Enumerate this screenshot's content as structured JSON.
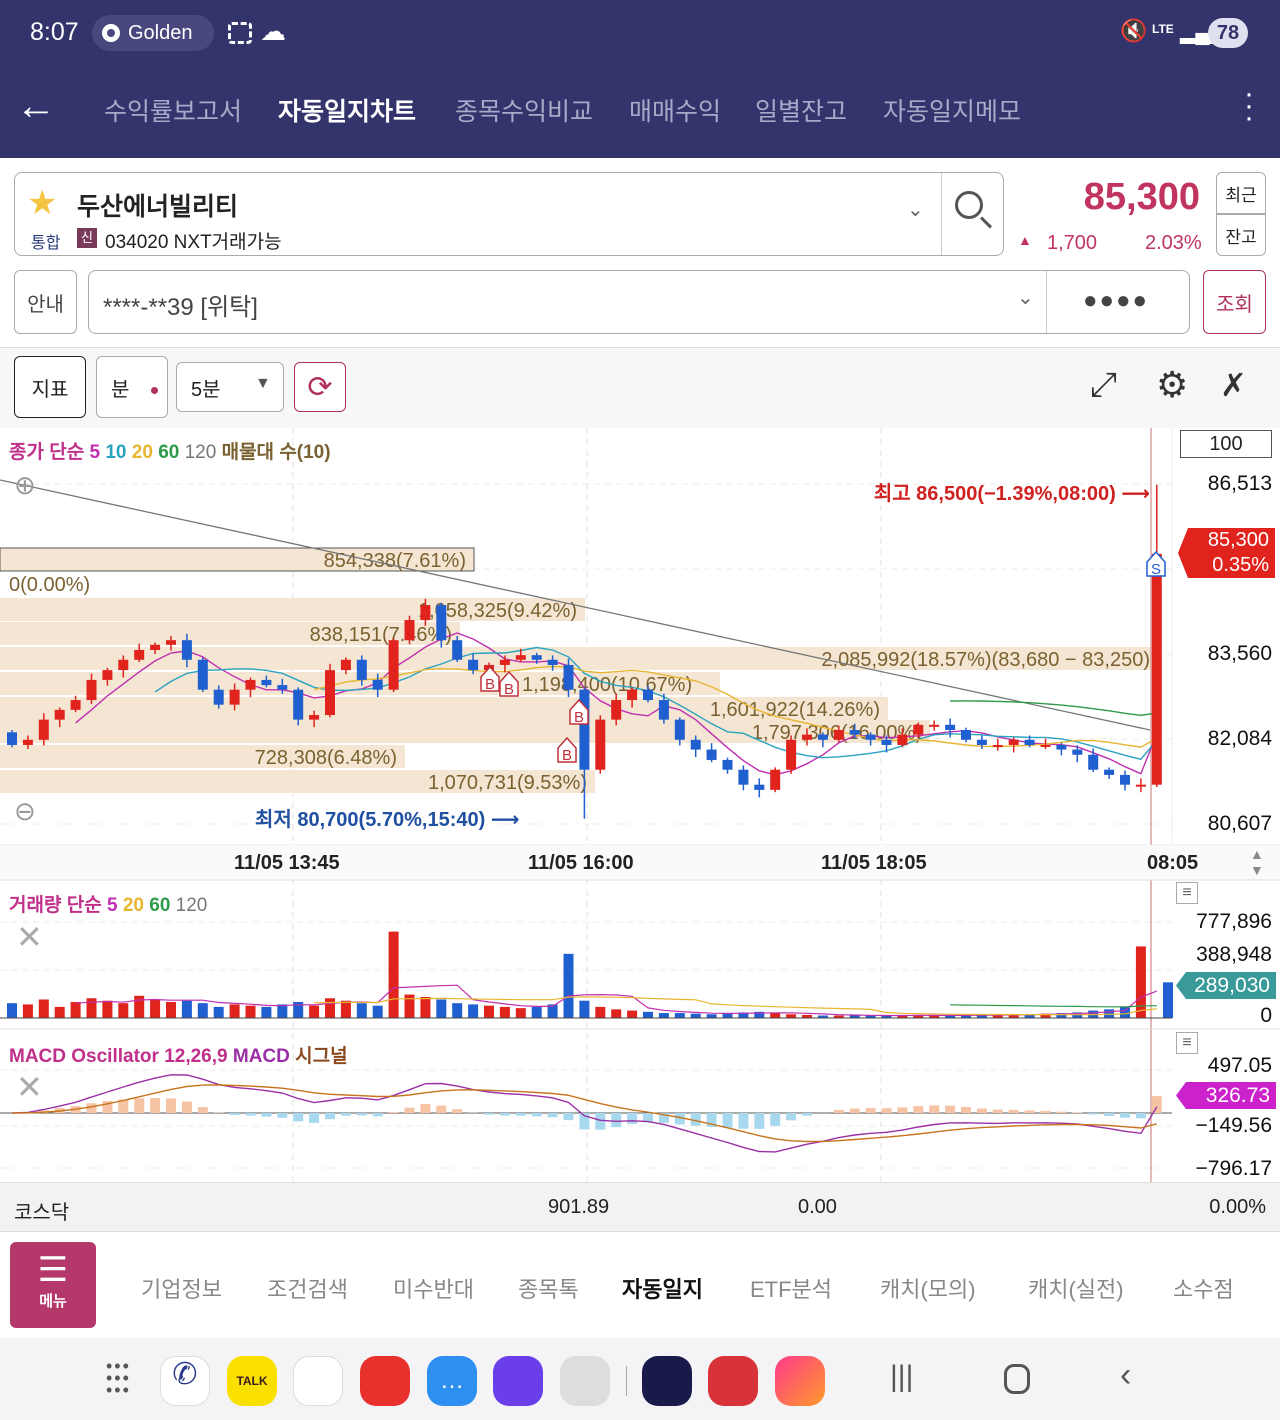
{
  "status_bar": {
    "time": "8:07",
    "pill_label": "Golden",
    "battery": "78",
    "network": "LTE"
  },
  "nav": {
    "tabs": [
      {
        "label": "수익률보고서",
        "active": false
      },
      {
        "label": "자동일지차트",
        "active": true
      },
      {
        "label": "종목수익비교",
        "active": false
      },
      {
        "label": "매매수익",
        "active": false
      },
      {
        "label": "일별잔고",
        "active": false
      },
      {
        "label": "자동일지메모",
        "active": false
      }
    ]
  },
  "stock": {
    "name": "두산에너빌리티",
    "market": "통합",
    "credit_badge": "신",
    "code_info": "034020 NXT거래가능",
    "price": "85,300",
    "change": "1,700",
    "change_pct": "2.03%",
    "recent_label": "최근",
    "balance_label": "잔고",
    "up_color": "#d0201f"
  },
  "account": {
    "info_label": "안내",
    "account_value": "****-**39 [위탁]",
    "password_mask": "●●●●",
    "query_label": "조회"
  },
  "toolbar": {
    "indicator_label": "지표",
    "period_label": "분",
    "interval_value": "5분"
  },
  "price_chart": {
    "legend": [
      {
        "text": "종가 단순",
        "color": "#c02f8a"
      },
      {
        "text": "5",
        "color": "#c02fb0"
      },
      {
        "text": "10",
        "color": "#2aa3c0"
      },
      {
        "text": "20",
        "color": "#e8b530"
      },
      {
        "text": "60",
        "color": "#2e9a4a"
      },
      {
        "text": "120",
        "color": "#777777"
      },
      {
        "text": "매물대 수(10)",
        "color": "#7a6130"
      }
    ],
    "count_box": "100",
    "y_ticks": [
      "86,513",
      "83,560",
      "82,084",
      "80,607"
    ],
    "current_price_tag": {
      "price": "85,300",
      "pct": "0.35%"
    },
    "high_label": "최고 86,500(−1.39%,08:00)",
    "low_label": "최저 80,700(5.70%,15:40)",
    "volume_profile": [
      "854,338(7.61%)",
      "0(0.00%)",
      "1,058,325(9.42%)",
      "838,151(7.46%)",
      "2,085,992(18.57%)(83,680 − 83,250)",
      "1,198,400(10.67%)",
      "1,601,922(14.26%)",
      "1,797,306(16.00%)",
      "728,308(6.48%)",
      "1,070,731(9.53%)"
    ],
    "markers": [
      "B",
      "B",
      "B",
      "B",
      "S"
    ],
    "x_ticks": [
      "11/05 13:45",
      "11/05 16:00",
      "11/05 18:05",
      "08:05"
    ],
    "closes": [
      81980,
      82070,
      82420,
      82590,
      82760,
      83110,
      83280,
      83460,
      83630,
      83720,
      83800,
      83460,
      82940,
      82680,
      82940,
      83110,
      83020,
      82940,
      82420,
      82500,
      83280,
      83460,
      83110,
      82940,
      83800,
      84150,
      84410,
      83800,
      83460,
      83280,
      83370,
      83460,
      83540,
      83460,
      83370,
      82940,
      81550,
      82420,
      82760,
      82940,
      82760,
      82420,
      82070,
      81900,
      81720,
      81550,
      81290,
      81200,
      81550,
      82070,
      82160,
      82070,
      82240,
      82160,
      82070,
      81980,
      82160,
      82330,
      82330,
      82240,
      82070,
      81980,
      81980,
      82070,
      81980,
      81980,
      81900,
      81810,
      81550,
      81460,
      81290,
      81290,
      85300
    ],
    "period_low": 80700,
    "period_high": 86500,
    "up_color": "#e0231c",
    "down_color": "#1f5fcf"
  },
  "volume_chart": {
    "legend": [
      {
        "text": "거래량 단순",
        "color": "#c02f8a"
      },
      {
        "text": "5",
        "color": "#c02fb0"
      },
      {
        "text": "20",
        "color": "#e8b530"
      },
      {
        "text": "60",
        "color": "#2e9a4a"
      },
      {
        "text": "120",
        "color": "#777777"
      }
    ],
    "y_ticks": [
      "777,896",
      "388,948",
      "0"
    ],
    "current_tag": "289,030",
    "tag_color": "#3a9a9a",
    "volumes": [
      120000,
      110000,
      150000,
      90000,
      130000,
      160000,
      140000,
      120000,
      180000,
      150000,
      130000,
      140000,
      120000,
      90000,
      110000,
      100000,
      90000,
      110000,
      130000,
      100000,
      160000,
      140000,
      120000,
      100000,
      700000,
      190000,
      170000,
      150000,
      120000,
      110000,
      100000,
      90000,
      80000,
      90000,
      110000,
      520000,
      140000,
      90000,
      70000,
      60000,
      50000,
      40000,
      40000,
      35000,
      30000,
      40000,
      45000,
      50000,
      40000,
      30000,
      25000,
      20000,
      20000,
      25000,
      20000,
      18000,
      20000,
      25000,
      22000,
      20000,
      20000,
      25000,
      30000,
      30000,
      28000,
      35000,
      40000,
      45000,
      60000,
      70000,
      90000,
      580000,
      289030
    ]
  },
  "macd_chart": {
    "legend": [
      {
        "text": "MACD Oscillator 12,26,9",
        "color": "#c02f8a"
      },
      {
        "text": "MACD",
        "color": "#9b2fa6"
      },
      {
        "text": "시그널",
        "color": "#b5651d"
      }
    ],
    "y_ticks": [
      "497.05",
      "−149.56",
      "−796.17"
    ],
    "current_tag": "326.73",
    "tag_color": "#cc22cc"
  },
  "index_bar": {
    "name": "코스닥",
    "value": "901.89",
    "change": "0.00",
    "change_pct": "0.00%"
  },
  "bottom_menu": {
    "menu_label": "메뉴",
    "items": [
      {
        "label": "기업정보",
        "active": false
      },
      {
        "label": "조건검색",
        "active": false
      },
      {
        "label": "미수반대",
        "active": false
      },
      {
        "label": "종목톡",
        "active": false
      },
      {
        "label": "자동일지",
        "active": true
      },
      {
        "label": "ETF분석",
        "active": false
      },
      {
        "label": "캐치(모의)",
        "active": false
      },
      {
        "label": "캐치(실전)",
        "active": false
      },
      {
        "label": "소수점",
        "active": false
      }
    ]
  },
  "dock": {
    "kakao_label": "TALK"
  }
}
